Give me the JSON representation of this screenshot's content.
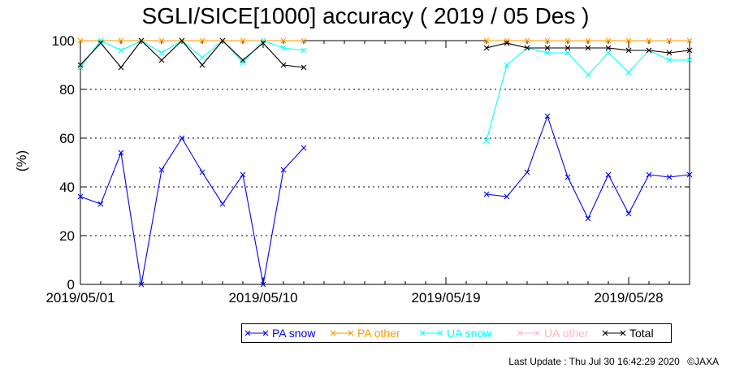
{
  "chart_data": {
    "type": "line",
    "title": "SGLI/SICE[1000] accuracy ( 2019 / 05 Des )",
    "ylabel": "(%)",
    "xlabel": "",
    "ylim": [
      0,
      100
    ],
    "y_ticks": [
      "0",
      "20",
      "40",
      "60",
      "80",
      "100"
    ],
    "x_ticks": [
      "2019/05/01",
      "2019/05/10",
      "2019/05/19",
      "2019/05/28"
    ],
    "grid": "dotted horizontal",
    "legend_position": "bottom",
    "x_dates": [
      "2019/05/01",
      "2019/05/02",
      "2019/05/03",
      "2019/05/04",
      "2019/05/05",
      "2019/05/06",
      "2019/05/07",
      "2019/05/08",
      "2019/05/09",
      "2019/05/10",
      "2019/05/11",
      "2019/05/12",
      "2019/05/13",
      "2019/05/14",
      "2019/05/15",
      "2019/05/16",
      "2019/05/17",
      "2019/05/18",
      "2019/05/19",
      "2019/05/20",
      "2019/05/21",
      "2019/05/22",
      "2019/05/23",
      "2019/05/24",
      "2019/05/25",
      "2019/05/26",
      "2019/05/27",
      "2019/05/28",
      "2019/05/29",
      "2019/05/30",
      "2019/05/31"
    ],
    "series": [
      {
        "name": "PA snow",
        "color": "#0000ff",
        "values": [
          36,
          33,
          54,
          0,
          47,
          60,
          46,
          33,
          45,
          0,
          47,
          56,
          null,
          null,
          null,
          null,
          null,
          null,
          null,
          null,
          37,
          36,
          46,
          69,
          44,
          27,
          45,
          29,
          45,
          44,
          45
        ]
      },
      {
        "name": "PA other",
        "color": "#ff9900",
        "values": [
          100,
          100,
          100,
          100,
          100,
          100,
          100,
          100,
          100,
          100,
          100,
          100,
          null,
          null,
          null,
          null,
          null,
          null,
          null,
          null,
          100,
          100,
          100,
          100,
          100,
          100,
          100,
          100,
          100,
          100,
          100
        ]
      },
      {
        "name": "UA snow",
        "color": "#00ffff",
        "values": [
          89,
          100,
          96,
          100,
          95,
          100,
          93,
          100,
          91,
          100,
          97,
          96,
          null,
          null,
          null,
          null,
          null,
          null,
          null,
          null,
          59,
          90,
          97,
          95,
          95,
          86,
          95,
          87,
          96,
          92,
          92
        ]
      },
      {
        "name": "UA other",
        "color": "#ffb6c1",
        "values": [
          90,
          99,
          89,
          100,
          92,
          100,
          90,
          100,
          92,
          99,
          90,
          89,
          null,
          null,
          null,
          null,
          null,
          null,
          null,
          null,
          97,
          99,
          97,
          97,
          97,
          97,
          97,
          96,
          96,
          95,
          96
        ]
      },
      {
        "name": "Total",
        "color": "#000000",
        "values": [
          90,
          99,
          89,
          100,
          92,
          100,
          90,
          100,
          92,
          99,
          90,
          89,
          null,
          null,
          null,
          null,
          null,
          null,
          null,
          null,
          97,
          99,
          97,
          97,
          97,
          97,
          97,
          96,
          96,
          95,
          96
        ]
      }
    ]
  },
  "footer": {
    "last_update": "Last Update : Thu Jul 30 16:42:29 2020",
    "copyright": "©JAXA"
  }
}
